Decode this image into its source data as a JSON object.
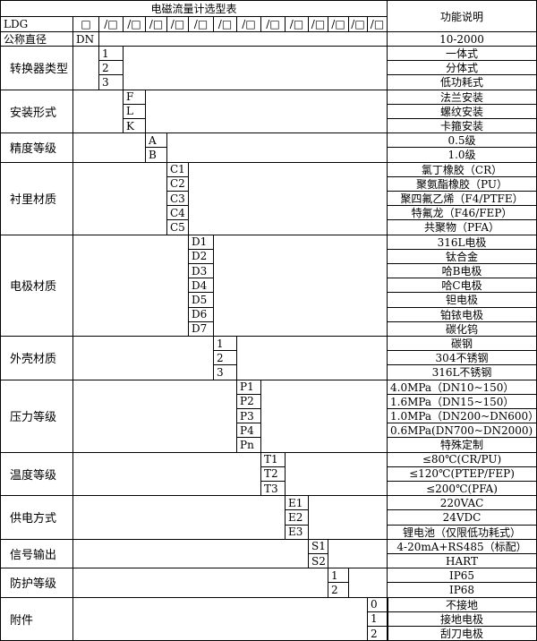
{
  "title": "电磁流量计选型表",
  "function_header": "功能说明",
  "model_prefix": "LDG",
  "model_slots": [
    "□",
    "/□",
    "/□",
    "/□",
    "/□",
    "/□",
    "/□",
    "/□",
    "/□",
    "/□",
    "/□",
    "/□",
    "/□",
    "/□"
  ],
  "nominal": {
    "label": "公称直径",
    "code": "DN",
    "function": "10-2000"
  },
  "groups": [
    {
      "label": "转换器类型",
      "slot": 1,
      "codes": [
        "1",
        "2",
        "3"
      ],
      "functions": [
        "一体式",
        "分体式",
        "低功耗式"
      ]
    },
    {
      "label": "安装形式",
      "slot": 2,
      "codes": [
        "F",
        "L",
        "K"
      ],
      "functions": [
        "法兰安装",
        "螺纹安装",
        "卡箍安装"
      ]
    },
    {
      "label": "精度等级",
      "slot": 3,
      "codes": [
        "A",
        "B"
      ],
      "functions": [
        "0.5级",
        "1.0级"
      ]
    },
    {
      "label": "衬里材质",
      "slot": 4,
      "codes": [
        "C1",
        "C2",
        "C3",
        "C4",
        "C5"
      ],
      "functions": [
        "氯丁橡胶（CR）",
        "聚氨酯橡胶（PU）",
        "聚四氟乙烯（F4/PTFE）",
        "特氟龙（F46/FEP）",
        "共聚物（PFA）"
      ]
    },
    {
      "label": "电极材质",
      "slot": 5,
      "codes": [
        "D1",
        "D2",
        "D3",
        "D4",
        "D5",
        "D6",
        "D7"
      ],
      "functions": [
        "316L电极",
        "钛合金",
        "哈B电极",
        "哈C电极",
        "钽电极",
        "铂铱电极",
        "碳化钨"
      ]
    },
    {
      "label": "外壳材质",
      "slot": 6,
      "codes": [
        "1",
        "2",
        "3"
      ],
      "functions": [
        "碳钢",
        "304不锈钢",
        "316L不锈钢"
      ]
    },
    {
      "label": "压力等级",
      "slot": 7,
      "codes": [
        "P1",
        "P2",
        "P3",
        "P4",
        "Pn"
      ],
      "functions": [
        "4.0MPa（DN10~150）",
        "1.6MPa（DN15~150）",
        "1.0MPa（DN200~DN600）",
        "0.6MPa(DN700~DN2000)",
        "特殊定制"
      ],
      "left_align": [
        true,
        true,
        true,
        true,
        false
      ]
    },
    {
      "label": "温度等级",
      "slot": 8,
      "codes": [
        "T1",
        "T2",
        "T3"
      ],
      "functions": [
        "≤80℃(CR/PU)",
        "≤120℃(PTEP/FEP)",
        "≤200℃(PFA)"
      ]
    },
    {
      "label": "供电方式",
      "slot": 9,
      "codes": [
        "E1",
        "E2",
        "E3"
      ],
      "functions": [
        "220VAC",
        "24VDC",
        "锂电池（仅限低功耗式）"
      ]
    },
    {
      "label": "信号输出",
      "slot": 10,
      "codes": [
        "S1",
        "S2"
      ],
      "functions": [
        "4-20mA+RS485（标配）",
        "HART"
      ]
    },
    {
      "label": "防护等级",
      "slot": 11,
      "codes": [
        "1",
        "2"
      ],
      "functions": [
        "IP65",
        "IP68"
      ]
    },
    {
      "label": "附件",
      "slot": 13,
      "codes": [
        "0",
        "1",
        "2"
      ],
      "functions": [
        "不接地",
        "接地电极",
        "刮刀电极"
      ]
    }
  ]
}
